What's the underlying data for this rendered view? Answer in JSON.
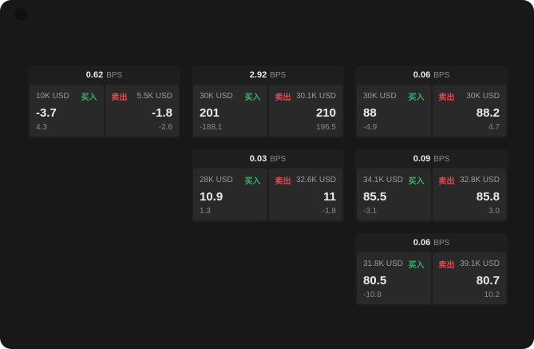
{
  "labels": {
    "bps": "BPS",
    "buy": "买入",
    "sell": "卖出"
  },
  "colors": {
    "buy": "#35b26b",
    "sell": "#e5484d",
    "background": "#181818",
    "panel": "#292929"
  },
  "cards": [
    {
      "spread": "0.62",
      "buy": {
        "amount": "10K USD",
        "price": "-3.7",
        "sub": "4.3"
      },
      "sell": {
        "amount": "5.5K USD",
        "price": "-1.8",
        "sub": "-2.6"
      }
    },
    {
      "spread": "2.92",
      "buy": {
        "amount": "30K USD",
        "price": "201",
        "sub": "-188.1"
      },
      "sell": {
        "amount": "30.1K USD",
        "price": "210",
        "sub": "196.5"
      }
    },
    {
      "spread": "0.06",
      "buy": {
        "amount": "30K USD",
        "price": "88",
        "sub": "-4.9"
      },
      "sell": {
        "amount": "30K USD",
        "price": "88.2",
        "sub": "4.7"
      }
    },
    {
      "spread": "0.03",
      "buy": {
        "amount": "28K USD",
        "price": "10.9",
        "sub": "1.3"
      },
      "sell": {
        "amount": "32.6K USD",
        "price": "11",
        "sub": "-1.8"
      }
    },
    {
      "spread": "0.09",
      "buy": {
        "amount": "34.1K USD",
        "price": "85.5",
        "sub": "-3.1"
      },
      "sell": {
        "amount": "32.8K USD",
        "price": "85.8",
        "sub": "3.0"
      }
    },
    {
      "spread": "0.06",
      "buy": {
        "amount": "31.8K USD",
        "price": "80.5",
        "sub": "-10.8"
      },
      "sell": {
        "amount": "39.1K USD",
        "price": "80.7",
        "sub": "10.2"
      }
    }
  ]
}
